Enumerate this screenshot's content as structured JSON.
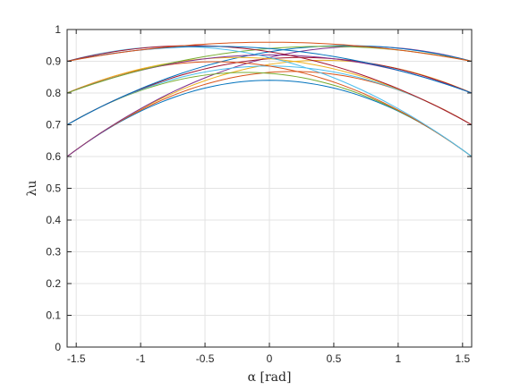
{
  "chart_data": {
    "type": "line",
    "title": "",
    "xlabel": "α [rad]",
    "ylabel": "λu",
    "xlim": [
      -1.5708,
      1.5708
    ],
    "ylim": [
      0,
      1
    ],
    "grid": true,
    "x_ticks": [
      -1.5,
      -1,
      -0.5,
      0,
      0.5,
      1,
      1.5
    ],
    "x_tick_labels": [
      "-1.5",
      "-1",
      "-0.5",
      "0",
      "0.5",
      "1",
      "1.5"
    ],
    "y_ticks": [
      0,
      0.1,
      0.2,
      0.3,
      0.4,
      0.5,
      0.6,
      0.7,
      0.8,
      0.9,
      1
    ],
    "y_tick_labels": [
      "0",
      "0.1",
      "0.2",
      "0.3",
      "0.4",
      "0.5",
      "0.6",
      "0.7",
      "0.8",
      "0.9",
      "1"
    ],
    "curve_samples": 61,
    "series": [
      {
        "color": "#0072bd",
        "y_left": 0.6,
        "y_right": 0.6,
        "y_peak": 0.84
      },
      {
        "color": "#d95319",
        "y_left": 0.6,
        "y_right": 0.7,
        "y_peak": 0.865
      },
      {
        "color": "#edb120",
        "y_left": 0.6,
        "y_right": 0.8,
        "y_peak": 0.89
      },
      {
        "color": "#7e2f8e",
        "y_left": 0.6,
        "y_right": 0.9,
        "y_peak": 0.912
      },
      {
        "color": "#77ac30",
        "y_left": 0.7,
        "y_right": 0.6,
        "y_peak": 0.862
      },
      {
        "color": "#4dbeee",
        "y_left": 0.7,
        "y_right": 0.7,
        "y_peak": 0.885
      },
      {
        "color": "#a2142f",
        "y_left": 0.7,
        "y_right": 0.8,
        "y_peak": 0.908
      },
      {
        "color": "#0072bd",
        "y_left": 0.7,
        "y_right": 0.9,
        "y_peak": 0.93
      },
      {
        "color": "#d95319",
        "y_left": 0.8,
        "y_right": 0.6,
        "y_peak": 0.885
      },
      {
        "color": "#edb120",
        "y_left": 0.8,
        "y_right": 0.7,
        "y_peak": 0.908
      },
      {
        "color": "#7e2f8e",
        "y_left": 0.8,
        "y_right": 0.8,
        "y_peak": 0.92
      },
      {
        "color": "#77ac30",
        "y_left": 0.8,
        "y_right": 0.9,
        "y_peak": 0.94
      },
      {
        "color": "#4dbeee",
        "y_left": 0.9,
        "y_right": 0.6,
        "y_peak": 0.912
      },
      {
        "color": "#a2142f",
        "y_left": 0.9,
        "y_right": 0.7,
        "y_peak": 0.93
      },
      {
        "color": "#0072bd",
        "y_left": 0.9,
        "y_right": 0.8,
        "y_peak": 0.94
      },
      {
        "color": "#d95319",
        "y_left": 0.9,
        "y_right": 0.9,
        "y_peak": 0.96
      }
    ]
  }
}
